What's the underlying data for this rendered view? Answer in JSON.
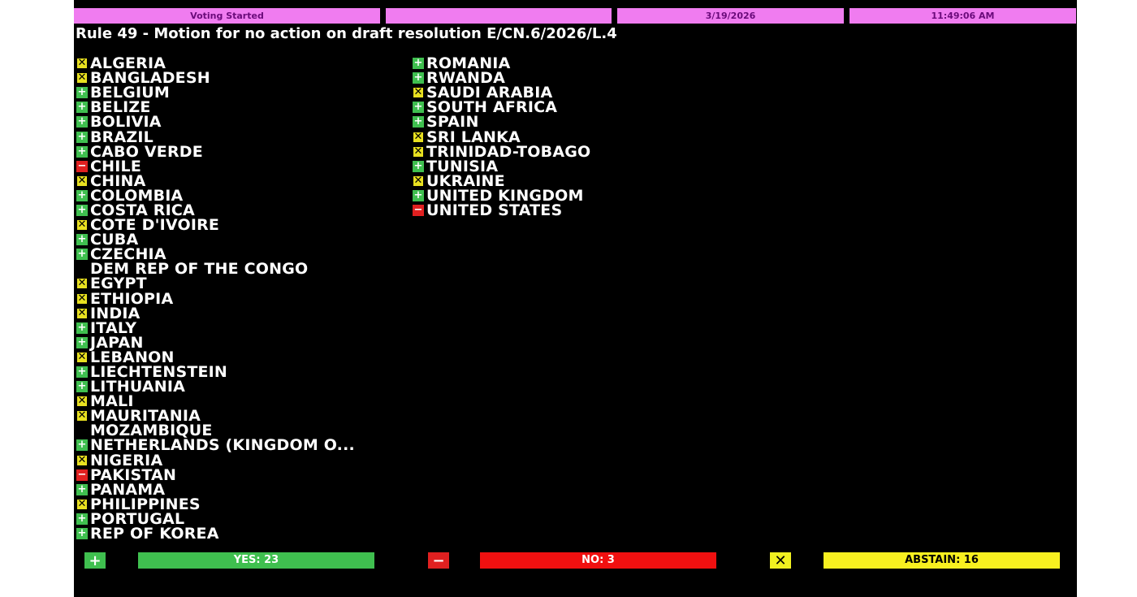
{
  "header": {
    "status": "Voting Started",
    "blank": "",
    "date": "3/19/2026",
    "time": "11:49:06 AM"
  },
  "title": "Rule 49 - Motion for no action on draft resolution E/CN.6/2026/L.4",
  "colors": {
    "yes": "#3fbf4f",
    "no": "#e02020",
    "abstain": "#f0f020",
    "header": "#f07cf0"
  },
  "columns": [
    [
      {
        "name": "ALGERIA",
        "vote": "abstain"
      },
      {
        "name": "BANGLADESH",
        "vote": "abstain"
      },
      {
        "name": "BELGIUM",
        "vote": "yes"
      },
      {
        "name": "BELIZE",
        "vote": "yes"
      },
      {
        "name": "BOLIVIA",
        "vote": "yes"
      },
      {
        "name": "BRAZIL",
        "vote": "yes"
      },
      {
        "name": "CABO VERDE",
        "vote": "yes"
      },
      {
        "name": "CHILE",
        "vote": "no"
      },
      {
        "name": "CHINA",
        "vote": "abstain"
      },
      {
        "name": "COLOMBIA",
        "vote": "yes"
      },
      {
        "name": "COSTA RICA",
        "vote": "yes"
      },
      {
        "name": "COTE D'IVOIRE",
        "vote": "abstain"
      },
      {
        "name": "CUBA",
        "vote": "yes"
      },
      {
        "name": "CZECHIA",
        "vote": "yes"
      },
      {
        "name": "DEM REP OF THE CONGO",
        "vote": "none"
      },
      {
        "name": "EGYPT",
        "vote": "abstain"
      },
      {
        "name": "ETHIOPIA",
        "vote": "abstain"
      },
      {
        "name": "INDIA",
        "vote": "abstain"
      },
      {
        "name": "ITALY",
        "vote": "yes"
      },
      {
        "name": "JAPAN",
        "vote": "yes"
      },
      {
        "name": "LEBANON",
        "vote": "abstain"
      },
      {
        "name": "LIECHTENSTEIN",
        "vote": "yes"
      },
      {
        "name": "LITHUANIA",
        "vote": "yes"
      },
      {
        "name": "MALI",
        "vote": "abstain"
      },
      {
        "name": "MAURITANIA",
        "vote": "abstain"
      },
      {
        "name": "MOZAMBIQUE",
        "vote": "none"
      },
      {
        "name": "NETHERLANDS (KINGDOM O...",
        "vote": "yes"
      },
      {
        "name": "NIGERIA",
        "vote": "abstain"
      },
      {
        "name": "PAKISTAN",
        "vote": "no"
      },
      {
        "name": "PANAMA",
        "vote": "yes"
      },
      {
        "name": "PHILIPPINES",
        "vote": "abstain"
      },
      {
        "name": "PORTUGAL",
        "vote": "yes"
      },
      {
        "name": "REP OF KOREA",
        "vote": "yes"
      }
    ],
    [
      {
        "name": "ROMANIA",
        "vote": "yes"
      },
      {
        "name": "RWANDA",
        "vote": "yes"
      },
      {
        "name": "SAUDI ARABIA",
        "vote": "abstain"
      },
      {
        "name": "SOUTH AFRICA",
        "vote": "yes"
      },
      {
        "name": "SPAIN",
        "vote": "yes"
      },
      {
        "name": "SRI LANKA",
        "vote": "abstain"
      },
      {
        "name": "TRINIDAD-TOBAGO",
        "vote": "abstain"
      },
      {
        "name": "TUNISIA",
        "vote": "yes"
      },
      {
        "name": "UKRAINE",
        "vote": "abstain"
      },
      {
        "name": "UNITED KINGDOM",
        "vote": "yes"
      },
      {
        "name": "UNITED STATES",
        "vote": "no"
      }
    ]
  ],
  "tally": {
    "yes": "YES: 23",
    "no": "NO: 3",
    "abstain": "ABSTAIN: 16"
  },
  "icons": {
    "yes": "plus-icon",
    "no": "minus-icon",
    "abstain": "x-icon"
  }
}
